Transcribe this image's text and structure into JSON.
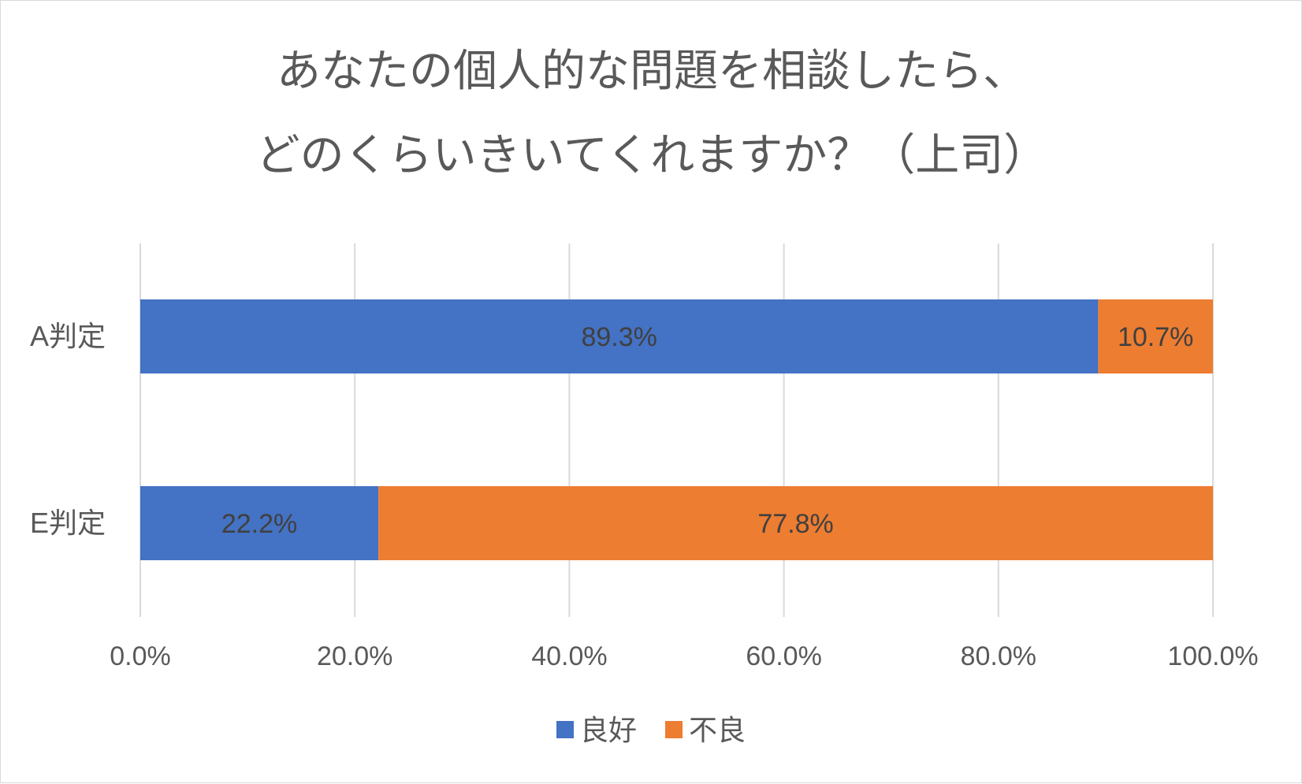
{
  "chart_data": {
    "type": "bar",
    "orientation": "horizontal",
    "stacked": true,
    "title_lines": [
      "あなたの個人的な問題を相談したら、",
      "どのくらいきいてくれますか？（上司）"
    ],
    "categories": [
      "A判定",
      "E判定"
    ],
    "series": [
      {
        "name": "良好",
        "color": "#4472C4",
        "values": [
          89.3,
          22.2
        ],
        "labels": [
          "89.3%",
          "22.2%"
        ]
      },
      {
        "name": "不良",
        "color": "#ED7D31",
        "values": [
          10.7,
          77.8
        ],
        "labels": [
          "10.7%",
          "77.8%"
        ]
      }
    ],
    "xlim": [
      0,
      100
    ],
    "xticks": [
      0,
      20,
      40,
      60,
      80,
      100
    ],
    "xtick_labels": [
      "0.0%",
      "20.0%",
      "40.0%",
      "60.0%",
      "80.0%",
      "100.0%"
    ],
    "grid": true,
    "legend_position": "bottom",
    "text_color": "#595959",
    "grid_color": "#d9d9d9"
  }
}
